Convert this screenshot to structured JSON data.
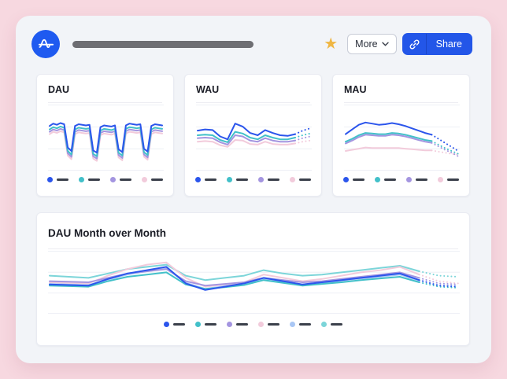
{
  "header": {
    "more_label": "More",
    "share_label": "Share",
    "star_glyph": "★"
  },
  "brand": {
    "logo_blue": "#1f5af0",
    "accent_blue": "#2356e8",
    "star_gold": "#efb643",
    "legend_dash": "#3b404b"
  },
  "chart_data": [
    {
      "type": "line",
      "title": "DAU",
      "ylim": [
        0,
        100
      ],
      "grid": true,
      "legend_position": "bottom",
      "legend_labels_redacted": true,
      "dotted_from": null,
      "series": [
        {
          "name": "blue",
          "color": "#2b55ec",
          "values": [
            70,
            74,
            72,
            75,
            73,
            33,
            27,
            70,
            73,
            72,
            71,
            72,
            28,
            24,
            68,
            71,
            70,
            69,
            71,
            30,
            25,
            71,
            74,
            73,
            72,
            73,
            31,
            26,
            70,
            73,
            72,
            71
          ]
        },
        {
          "name": "teal",
          "color": "#42c0c9",
          "values": [
            64,
            68,
            66,
            69,
            67,
            27,
            21,
            64,
            67,
            66,
            65,
            66,
            22,
            18,
            62,
            65,
            64,
            63,
            65,
            24,
            19,
            65,
            68,
            67,
            66,
            67,
            25,
            20,
            64,
            67,
            66,
            65
          ]
        },
        {
          "name": "purple",
          "color": "#a495e0",
          "values": [
            60,
            64,
            62,
            65,
            63,
            23,
            17,
            60,
            63,
            62,
            61,
            62,
            18,
            14,
            58,
            61,
            60,
            59,
            61,
            20,
            15,
            61,
            64,
            63,
            62,
            63,
            21,
            16,
            60,
            63,
            62,
            61
          ]
        },
        {
          "name": "pink",
          "color": "#f2cbdb",
          "values": [
            56,
            60,
            58,
            61,
            59,
            19,
            13,
            56,
            59,
            58,
            57,
            58,
            14,
            10,
            54,
            57,
            56,
            55,
            57,
            16,
            11,
            57,
            60,
            59,
            58,
            59,
            17,
            12,
            56,
            59,
            58,
            57
          ]
        }
      ]
    },
    {
      "type": "line",
      "title": "WAU",
      "ylim": [
        0,
        100
      ],
      "grid": true,
      "legend_position": "bottom",
      "legend_labels_redacted": true,
      "dotted_from": 13,
      "series": [
        {
          "name": "blue",
          "color": "#2b55ec",
          "values": [
            62,
            64,
            63,
            52,
            47,
            74,
            69,
            58,
            54,
            63,
            58,
            54,
            53,
            56,
            62,
            66
          ]
        },
        {
          "name": "teal",
          "color": "#42c0c9",
          "values": [
            54,
            55,
            54,
            46,
            42,
            60,
            57,
            50,
            47,
            54,
            50,
            47,
            47,
            50,
            54,
            57
          ]
        },
        {
          "name": "purple",
          "color": "#a495e0",
          "values": [
            49,
            50,
            49,
            42,
            38,
            54,
            52,
            45,
            43,
            49,
            45,
            43,
            43,
            45,
            49,
            52
          ]
        },
        {
          "name": "pink",
          "color": "#f2cbdb",
          "values": [
            43,
            44,
            43,
            37,
            34,
            46,
            45,
            39,
            38,
            43,
            39,
            38,
            38,
            40,
            43,
            45
          ]
        }
      ]
    },
    {
      "type": "line",
      "title": "MAU",
      "ylim": [
        0,
        100
      ],
      "grid": true,
      "legend_position": "bottom",
      "legend_labels_redacted": true,
      "dotted_from": 13,
      "series": [
        {
          "name": "blue",
          "color": "#2b55ec",
          "values": [
            56,
            64,
            72,
            76,
            74,
            72,
            73,
            75,
            73,
            70,
            66,
            62,
            58,
            55,
            48,
            41,
            34,
            27
          ]
        },
        {
          "name": "teal",
          "color": "#42c0c9",
          "values": [
            43,
            48,
            54,
            58,
            57,
            56,
            56,
            58,
            57,
            55,
            52,
            49,
            46,
            44,
            38,
            32,
            27,
            22
          ]
        },
        {
          "name": "purple",
          "color": "#a495e0",
          "values": [
            40,
            45,
            51,
            55,
            54,
            53,
            53,
            55,
            54,
            52,
            49,
            46,
            43,
            41,
            35,
            29,
            24,
            18
          ]
        },
        {
          "name": "pink",
          "color": "#f2cbdb",
          "values": [
            27,
            29,
            31,
            33,
            32,
            32,
            32,
            32,
            32,
            31,
            30,
            29,
            28,
            28,
            26,
            24,
            22,
            21
          ]
        }
      ]
    },
    {
      "type": "line",
      "title": "DAU Month over Month",
      "ylim": [
        0,
        100
      ],
      "grid": true,
      "legend_position": "bottom",
      "legend_labels_redacted": true,
      "dotted_from": 19,
      "series": [
        {
          "name": "blue",
          "color": "#2b55ec",
          "values": [
            46,
            45,
            44,
            56,
            66,
            72,
            78,
            48,
            36,
            42,
            48,
            58,
            52,
            46,
            50,
            54,
            58,
            62,
            66,
            54,
            44,
            42
          ]
        },
        {
          "name": "teal",
          "color": "#42c0c9",
          "values": [
            44,
            43,
            42,
            52,
            60,
            64,
            68,
            46,
            38,
            41,
            45,
            54,
            49,
            44,
            47,
            50,
            54,
            57,
            60,
            50,
            42,
            40
          ]
        },
        {
          "name": "purple",
          "color": "#a495e0",
          "values": [
            52,
            51,
            50,
            58,
            66,
            70,
            74,
            52,
            44,
            47,
            50,
            58,
            54,
            50,
            52,
            56,
            60,
            64,
            68,
            58,
            48,
            46
          ]
        },
        {
          "name": "pink",
          "color": "#f2cbdb",
          "values": [
            50,
            49,
            48,
            62,
            74,
            82,
            86,
            58,
            42,
            46,
            50,
            64,
            58,
            52,
            56,
            62,
            68,
            72,
            78,
            64,
            52,
            48
          ]
        },
        {
          "name": "light-blue",
          "color": "#a9c7f5",
          "values": [
            47,
            46,
            45,
            55,
            64,
            70,
            75,
            49,
            38,
            43,
            48,
            56,
            51,
            46,
            49,
            53,
            57,
            60,
            64,
            53,
            45,
            43
          ]
        },
        {
          "name": "light-teal",
          "color": "#7cd5d9",
          "values": [
            62,
            60,
            58,
            66,
            74,
            78,
            82,
            62,
            54,
            58,
            62,
            72,
            66,
            62,
            64,
            68,
            72,
            76,
            80,
            70,
            62,
            60
          ]
        }
      ]
    }
  ]
}
